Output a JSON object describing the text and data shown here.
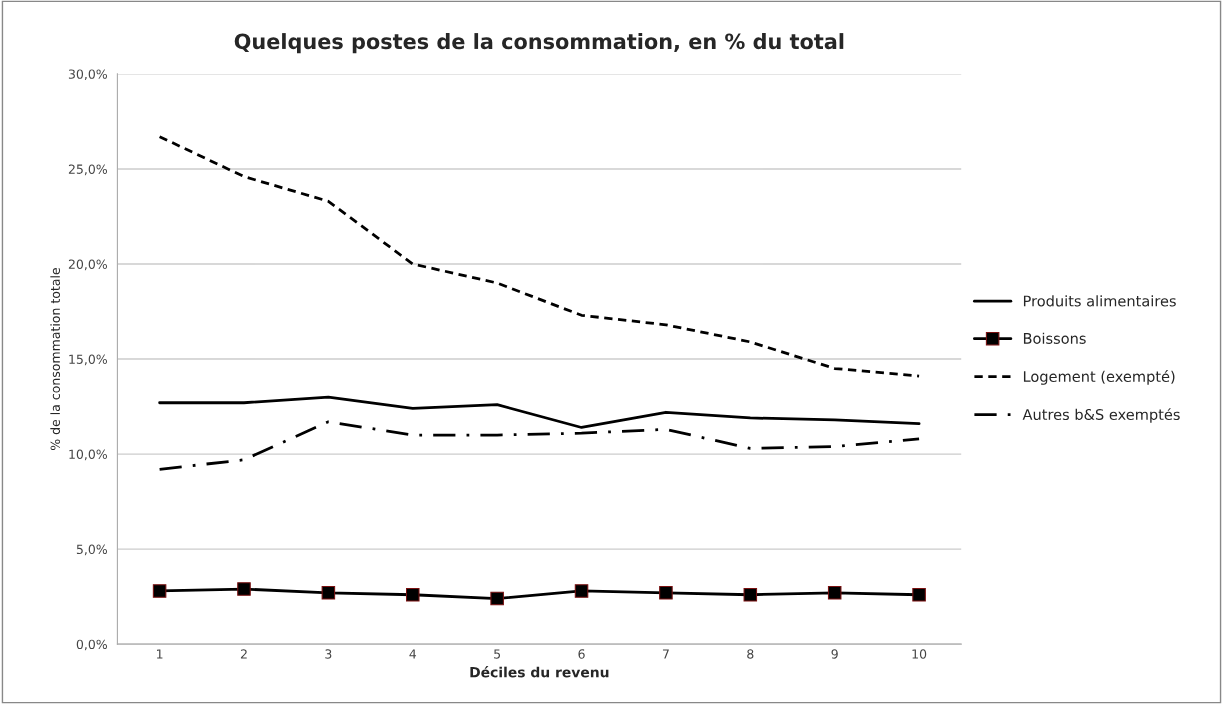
{
  "chart_data": {
    "type": "line",
    "title": "Quelques postes de la consommation, en % du total",
    "xlabel": "Déciles du revenu",
    "ylabel": "% de la consommation totale",
    "categories": [
      "1",
      "2",
      "3",
      "4",
      "5",
      "6",
      "7",
      "8",
      "9",
      "10"
    ],
    "series": [
      {
        "name": "Produits alimentaires",
        "color": "#000000",
        "line_style": "solid",
        "values": [
          12.7,
          12.7,
          13.0,
          12.4,
          12.6,
          11.4,
          12.2,
          11.9,
          11.8,
          11.6
        ]
      },
      {
        "name": "Boissons",
        "color": "#000000",
        "line_style": "solid",
        "marker": "square",
        "values": [
          2.8,
          2.9,
          2.7,
          2.6,
          2.4,
          2.8,
          2.7,
          2.6,
          2.7,
          2.6
        ]
      },
      {
        "name": "Logement (exempté)",
        "color": "#000000",
        "line_style": "dashed",
        "values": [
          26.7,
          24.6,
          23.3,
          20.0,
          19.0,
          17.3,
          16.8,
          15.9,
          14.5,
          14.1
        ]
      },
      {
        "name": "Autres b&S exemptés",
        "color": "#000000",
        "line_style": "dashdot",
        "values": [
          9.2,
          9.7,
          11.7,
          11.0,
          11.0,
          11.1,
          11.3,
          10.3,
          10.4,
          10.8
        ]
      }
    ],
    "ylim": [
      0,
      30
    ],
    "yticks": [
      {
        "value": 0,
        "label": "0,0%"
      },
      {
        "value": 5,
        "label": "5,0%"
      },
      {
        "value": 10,
        "label": "10,0%"
      },
      {
        "value": 15,
        "label": "15,0%"
      },
      {
        "value": 20,
        "label": "20,0%"
      },
      {
        "value": 25,
        "label": "25,0%"
      },
      {
        "value": 30,
        "label": "30,0%"
      }
    ],
    "grid": "y",
    "legend": "right"
  }
}
